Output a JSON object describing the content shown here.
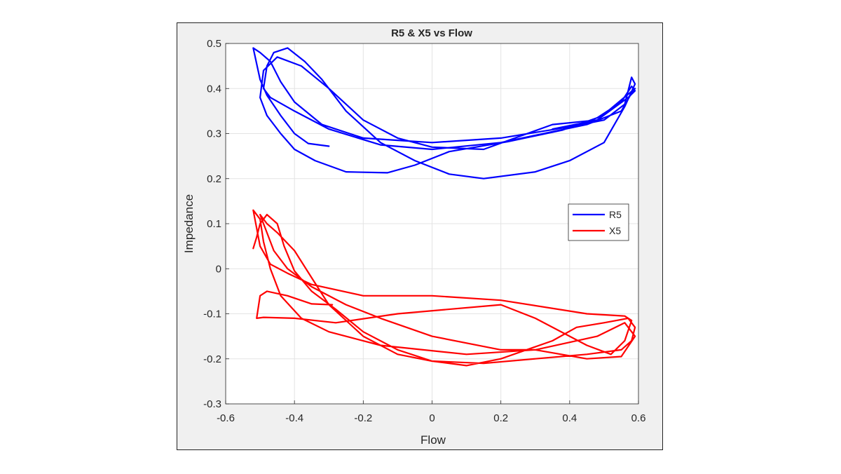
{
  "chart_data": {
    "type": "line",
    "title": "R5 & X5 vs Flow",
    "xlabel": "Flow",
    "ylabel": "Impedance",
    "xlim": [
      -0.6,
      0.6
    ],
    "ylim": [
      -0.3,
      0.5
    ],
    "xticks": [
      "-0.6",
      "-0.4",
      "-0.2",
      "0",
      "0.2",
      "0.4",
      "0.6"
    ],
    "yticks": [
      "0.5",
      "0.4",
      "0.3",
      "0.2",
      "0.1",
      "0",
      "-0.1",
      "-0.2",
      "-0.3"
    ],
    "grid": true,
    "legend_position": "right",
    "series": [
      {
        "name": "R5",
        "color": "#0000ff",
        "points": [
          [
            -0.3,
            0.272
          ],
          [
            -0.36,
            0.278
          ],
          [
            -0.4,
            0.3
          ],
          [
            -0.44,
            0.34
          ],
          [
            -0.48,
            0.385
          ],
          [
            -0.5,
            0.42
          ],
          [
            -0.52,
            0.49
          ],
          [
            -0.5,
            0.48
          ],
          [
            -0.47,
            0.46
          ],
          [
            -0.44,
            0.415
          ],
          [
            -0.4,
            0.37
          ],
          [
            -0.32,
            0.32
          ],
          [
            -0.2,
            0.29
          ],
          [
            -0.1,
            0.285
          ],
          [
            0.0,
            0.28
          ],
          [
            0.2,
            0.29
          ],
          [
            0.4,
            0.315
          ],
          [
            0.5,
            0.33
          ],
          [
            0.56,
            0.365
          ],
          [
            0.58,
            0.425
          ],
          [
            0.59,
            0.41
          ],
          [
            0.56,
            0.36
          ],
          [
            0.5,
            0.28
          ],
          [
            0.4,
            0.24
          ],
          [
            0.3,
            0.215
          ],
          [
            0.15,
            0.2
          ],
          [
            0.05,
            0.21
          ],
          [
            -0.05,
            0.24
          ],
          [
            -0.15,
            0.28
          ],
          [
            -0.25,
            0.35
          ],
          [
            -0.32,
            0.42
          ],
          [
            -0.37,
            0.46
          ],
          [
            -0.42,
            0.49
          ],
          [
            -0.46,
            0.48
          ],
          [
            -0.48,
            0.45
          ],
          [
            -0.49,
            0.4
          ],
          [
            -0.47,
            0.38
          ],
          [
            -0.4,
            0.35
          ],
          [
            -0.3,
            0.31
          ],
          [
            -0.15,
            0.275
          ],
          [
            0.0,
            0.265
          ],
          [
            0.2,
            0.28
          ],
          [
            0.45,
            0.32
          ],
          [
            0.55,
            0.35
          ],
          [
            0.58,
            0.39
          ],
          [
            0.59,
            0.4
          ],
          [
            0.48,
            0.33
          ],
          [
            0.35,
            0.32
          ],
          [
            0.15,
            0.265
          ],
          [
            0.0,
            0.27
          ],
          [
            -0.1,
            0.29
          ],
          [
            -0.2,
            0.33
          ],
          [
            -0.3,
            0.4
          ],
          [
            -0.38,
            0.45
          ],
          [
            -0.45,
            0.47
          ],
          [
            -0.49,
            0.44
          ],
          [
            -0.5,
            0.38
          ],
          [
            -0.48,
            0.34
          ],
          [
            -0.44,
            0.3
          ],
          [
            -0.4,
            0.265
          ],
          [
            -0.34,
            0.24
          ],
          [
            -0.25,
            0.215
          ],
          [
            -0.13,
            0.213
          ],
          [
            -0.05,
            0.23
          ],
          [
            0.05,
            0.26
          ],
          [
            0.22,
            0.282
          ],
          [
            0.38,
            0.308
          ],
          [
            0.48,
            0.335
          ],
          [
            0.55,
            0.37
          ],
          [
            0.58,
            0.405
          ],
          [
            0.59,
            0.395
          ],
          [
            0.57,
            0.38
          ],
          [
            0.48,
            0.33
          ],
          [
            0.35,
            0.31
          ]
        ]
      },
      {
        "name": "X5",
        "color": "#ff0000",
        "points": [
          [
            -0.29,
            -0.08
          ],
          [
            -0.35,
            -0.078
          ],
          [
            -0.42,
            -0.06
          ],
          [
            -0.48,
            -0.05
          ],
          [
            -0.5,
            -0.06
          ],
          [
            -0.51,
            -0.11
          ],
          [
            -0.49,
            -0.108
          ],
          [
            -0.4,
            -0.11
          ],
          [
            -0.28,
            -0.12
          ],
          [
            -0.1,
            -0.1
          ],
          [
            0.2,
            -0.08
          ],
          [
            0.3,
            -0.11
          ],
          [
            0.45,
            -0.17
          ],
          [
            0.52,
            -0.19
          ],
          [
            0.56,
            -0.16
          ],
          [
            0.58,
            -0.115
          ],
          [
            0.56,
            -0.105
          ],
          [
            0.45,
            -0.1
          ],
          [
            0.2,
            -0.07
          ],
          [
            0.0,
            -0.06
          ],
          [
            -0.2,
            -0.06
          ],
          [
            -0.35,
            -0.035
          ],
          [
            -0.42,
            -0.01
          ],
          [
            -0.47,
            0.01
          ],
          [
            -0.5,
            0.05
          ],
          [
            -0.52,
            0.13
          ],
          [
            -0.5,
            0.11
          ],
          [
            -0.49,
            0.06
          ],
          [
            -0.47,
            0.0
          ],
          [
            -0.44,
            -0.06
          ],
          [
            -0.38,
            -0.11
          ],
          [
            -0.3,
            -0.14
          ],
          [
            -0.15,
            -0.17
          ],
          [
            0.1,
            -0.19
          ],
          [
            0.3,
            -0.18
          ],
          [
            0.48,
            -0.15
          ],
          [
            0.56,
            -0.12
          ],
          [
            0.59,
            -0.15
          ],
          [
            0.55,
            -0.195
          ],
          [
            0.45,
            -0.2
          ],
          [
            0.3,
            -0.18
          ],
          [
            0.2,
            -0.18
          ],
          [
            0.0,
            -0.15
          ],
          [
            -0.15,
            -0.11
          ],
          [
            -0.25,
            -0.08
          ],
          [
            -0.35,
            -0.04
          ],
          [
            -0.42,
            0.0
          ],
          [
            -0.46,
            0.04
          ],
          [
            -0.49,
            0.1
          ],
          [
            -0.5,
            0.12
          ],
          [
            -0.48,
            0.1
          ],
          [
            -0.45,
            0.08
          ],
          [
            -0.4,
            0.04
          ],
          [
            -0.35,
            -0.02
          ],
          [
            -0.3,
            -0.08
          ],
          [
            -0.2,
            -0.15
          ],
          [
            -0.1,
            -0.19
          ],
          [
            0.0,
            -0.205
          ],
          [
            0.15,
            -0.21
          ],
          [
            0.3,
            -0.2
          ],
          [
            0.45,
            -0.19
          ],
          [
            0.55,
            -0.18
          ],
          [
            0.58,
            -0.16
          ],
          [
            0.59,
            -0.13
          ],
          [
            0.57,
            -0.11
          ],
          [
            0.5,
            -0.12
          ],
          [
            0.42,
            -0.13
          ],
          [
            0.35,
            -0.16
          ],
          [
            0.2,
            -0.2
          ],
          [
            0.1,
            -0.215
          ],
          [
            0.0,
            -0.205
          ],
          [
            -0.1,
            -0.18
          ],
          [
            -0.2,
            -0.14
          ],
          [
            -0.28,
            -0.09
          ],
          [
            -0.35,
            -0.05
          ],
          [
            -0.4,
            -0.005
          ],
          [
            -0.43,
            0.05
          ],
          [
            -0.45,
            0.1
          ],
          [
            -0.48,
            0.12
          ],
          [
            -0.5,
            0.1
          ],
          [
            -0.51,
            0.07
          ],
          [
            -0.52,
            0.045
          ]
        ]
      }
    ]
  }
}
